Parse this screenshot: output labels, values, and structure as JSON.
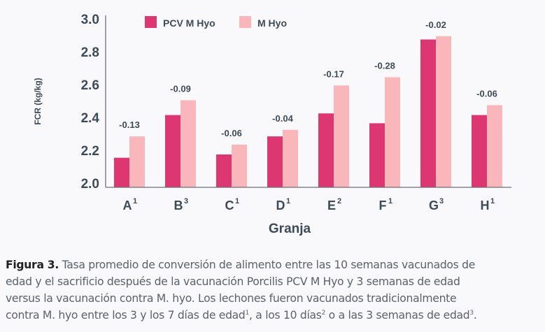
{
  "chart_data": {
    "type": "bar",
    "title": "",
    "xlabel": "Granja",
    "ylabel": "FCR (kg/kg)",
    "ylim": [
      2.0,
      3.0
    ],
    "yticks": [
      "2.0",
      "2.2",
      "2.4",
      "2.6",
      "2.8",
      "3.0"
    ],
    "categories": [
      "A",
      "B",
      "C",
      "D",
      "E",
      "F",
      "G",
      "H"
    ],
    "category_superscripts": [
      "1",
      "3",
      "1",
      "1",
      "2",
      "1",
      "3",
      "1"
    ],
    "series": [
      {
        "name": "PCV M Hyo",
        "color": "#dc3771",
        "values": [
          2.18,
          2.44,
          2.2,
          2.31,
          2.45,
          2.39,
          2.9,
          2.44
        ]
      },
      {
        "name": "M Hyo",
        "color": "#f9b6bb",
        "values": [
          2.31,
          2.53,
          2.26,
          2.35,
          2.62,
          2.67,
          2.92,
          2.5
        ]
      }
    ],
    "data_labels": [
      "-0.13",
      "-0.09",
      "-0.06",
      "-0.04",
      "-0.17",
      "-0.28",
      "-0.02",
      "-0.06"
    ],
    "legend": "top",
    "grid": false
  },
  "caption": {
    "label": "Figura 3.",
    "lines": [
      [
        "Tasa promedio de conversión de alimento entre las 10 semanas vacunados de"
      ],
      [
        "edad y el sacrificio después de la vacunación Porcilis PCV M Hyo y 3 semanas de edad"
      ],
      [
        "versus la vacunación contra M. hyo. Los lechones fueron vacunados tradicionalmente"
      ],
      [
        "contra M. hyo entre los 3 y los 7 días de edad",
        "1",
        ", a los 10 días",
        "2",
        " o a las 3 semanas de edad",
        "3",
        "."
      ]
    ]
  }
}
